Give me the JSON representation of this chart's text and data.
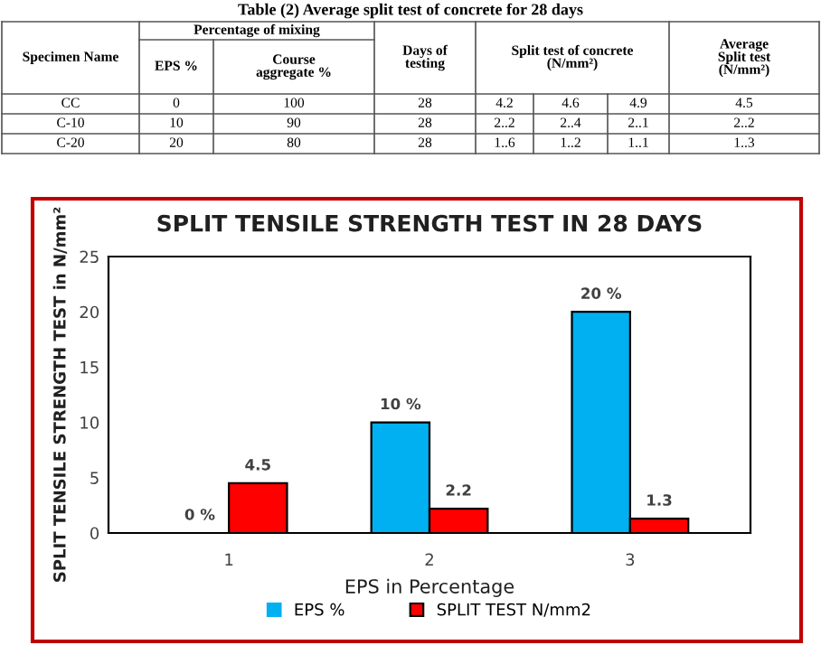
{
  "chart_data": [
    {
      "type": "other",
      "title": "Table (2) Average split test of concrete for 28 days",
      "annotations": [
        "Specimen Name",
        "Percentage of mixing",
        "EPS %",
        "Course aggregate %",
        "Days of testing",
        "Split test of concrete (N/mm²)",
        "Average Split test (N/mm²)",
        "CC",
        "0",
        "100",
        "28",
        "4.2",
        "4.6",
        "4.9",
        "4.5",
        "C-10",
        "10",
        "90",
        "28",
        "2..2",
        "2..4",
        "2..1",
        "2..2",
        "C-20",
        "20",
        "80",
        "28",
        "1..6",
        "1..2",
        "1..1",
        "1..3"
      ]
    },
    {
      "type": "bar",
      "title": "SPLIT TENSILE STRENGTH TEST IN 28 DAYS",
      "xlabel": "EPS in Percentage",
      "ylabel": "SPLIT TENSILE STRENGTH TEST in N/mm²",
      "categories": [
        "1",
        "2",
        "3"
      ],
      "series": [
        {
          "name": "EPS %",
          "color": "#00b0f0",
          "values": [
            0,
            10,
            20
          ],
          "value_labels": [
            "0 %",
            "10 %",
            "20 %"
          ]
        },
        {
          "name": "SPLIT TEST N/mm2",
          "color": "#ff0000",
          "values": [
            4.5,
            2.2,
            1.3
          ],
          "value_labels": [
            "4.5",
            "2.2",
            "1.3"
          ]
        }
      ],
      "ylim": [
        0,
        25
      ],
      "yticks": [
        0,
        5,
        10,
        15,
        20,
        25
      ],
      "grid": false,
      "legend": "bottom"
    }
  ]
}
